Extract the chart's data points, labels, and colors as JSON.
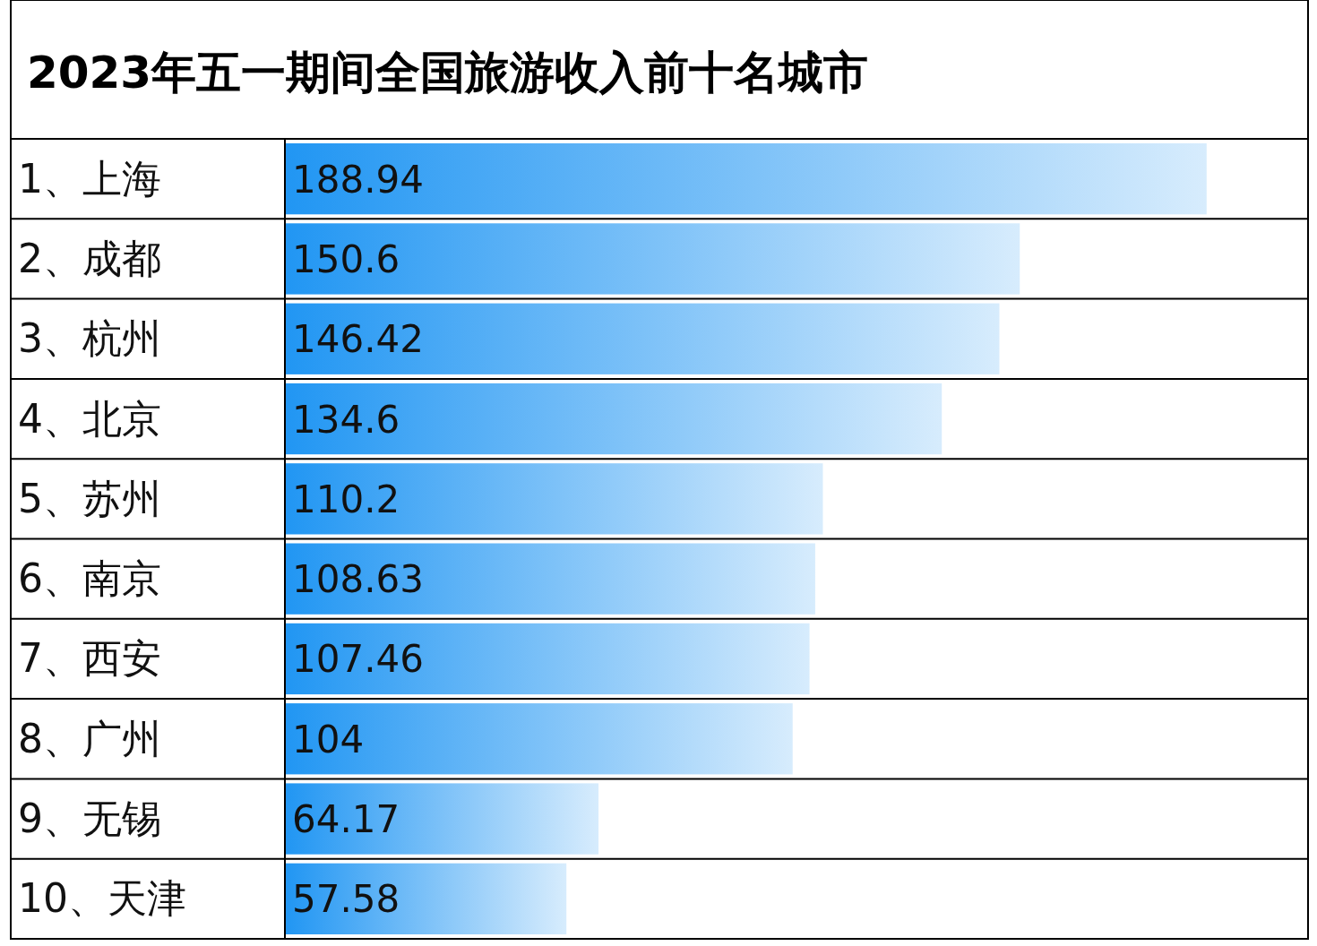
{
  "chart_data": {
    "type": "bar",
    "orientation": "horizontal",
    "title": "2023年五一期间全国旅游收入前十名城市",
    "categories": [
      "1、上海",
      "2、成都",
      "3、杭州",
      "4、北京",
      "5、苏州",
      "6、南京",
      "7、西安",
      "8、广州",
      "9、无锡",
      "10、天津"
    ],
    "values": [
      188.94,
      150.6,
      146.42,
      134.6,
      110.2,
      108.63,
      107.46,
      104,
      64.17,
      57.58
    ],
    "color": "#2196f3",
    "data_labels": true,
    "grid": "y"
  }
}
